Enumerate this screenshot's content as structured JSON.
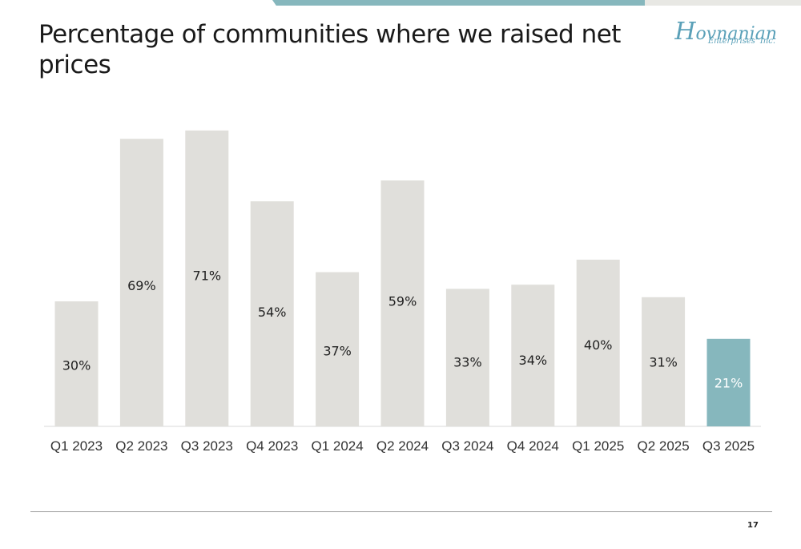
{
  "header": {
    "title": "Percentage of communities where we raised net prices"
  },
  "logo": {
    "text_initial": "H",
    "text_rest": "ovnanian",
    "subtext": "Enterprises' Inc."
  },
  "colors": {
    "bar_default": "#e0dfdb",
    "bar_highlight": "#86b7bd",
    "label_default": "#222222",
    "label_highlight": "#ffffff",
    "accent_top_bar": "#86b7bd"
  },
  "chart_data": {
    "type": "bar",
    "title": "Percentage of communities where we raised net prices",
    "xlabel": "",
    "ylabel": "",
    "ylim": [
      0,
      75
    ],
    "grid": false,
    "legend": "none",
    "categories": [
      "Q1 2023",
      "Q2 2023",
      "Q3 2023",
      "Q4 2023",
      "Q1 2024",
      "Q2 2024",
      "Q3 2024",
      "Q4 2024",
      "Q1 2025",
      "Q2 2025",
      "Q3 2025"
    ],
    "values": [
      30,
      69,
      71,
      54,
      37,
      59,
      33,
      34,
      40,
      31,
      21
    ],
    "data_labels": [
      "30%",
      "69%",
      "71%",
      "54%",
      "37%",
      "59%",
      "33%",
      "34%",
      "40%",
      "31%",
      "21%"
    ],
    "highlight_index": 10
  },
  "footer": {
    "page_number": "17"
  }
}
